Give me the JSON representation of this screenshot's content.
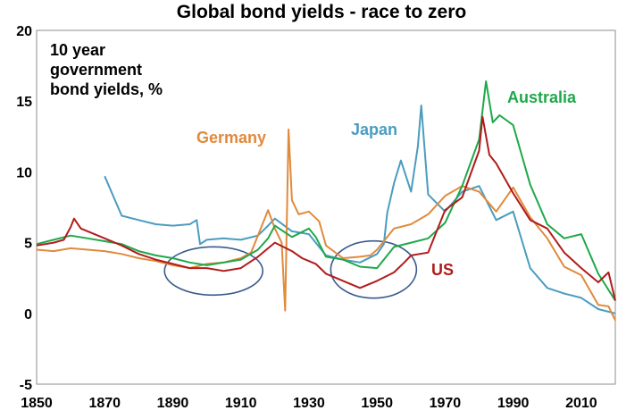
{
  "chart_data": {
    "type": "line",
    "title": "Global bond yields - race to zero",
    "annotation": [
      "10 year",
      "government",
      "bond yields, %"
    ],
    "xlim": [
      1850,
      2020
    ],
    "ylim": [
      -5,
      20
    ],
    "x_ticks": [
      1850,
      1870,
      1890,
      1910,
      1930,
      1950,
      1970,
      1990,
      2010
    ],
    "y_ticks": [
      20,
      15,
      10,
      5,
      0,
      -5
    ],
    "grid": false,
    "colors": {
      "US": "#b01c1c",
      "Germany": "#e08a3c",
      "Japan": "#4a9cc0",
      "Australia": "#1fa84a",
      "ellipse": "#3a5a8c"
    },
    "series": [
      {
        "name": "US",
        "x": [
          1850,
          1855,
          1858,
          1860,
          1861,
          1863,
          1865,
          1870,
          1875,
          1880,
          1885,
          1890,
          1895,
          1900,
          1905,
          1910,
          1915,
          1918,
          1920,
          1925,
          1928,
          1930,
          1932,
          1935,
          1940,
          1945,
          1950,
          1955,
          1958,
          1960,
          1965,
          1970,
          1975,
          1980,
          1981,
          1983,
          1985,
          1990,
          1995,
          2000,
          2005,
          2010,
          2015,
          2018,
          2020
        ],
        "values": [
          4.8,
          5.0,
          5.2,
          6.1,
          6.7,
          6.0,
          5.8,
          5.3,
          4.8,
          4.2,
          3.8,
          3.5,
          3.2,
          3.2,
          3.0,
          3.2,
          4.0,
          4.6,
          5.0,
          4.4,
          3.9,
          3.7,
          3.5,
          2.8,
          2.3,
          1.8,
          2.3,
          2.9,
          3.6,
          4.1,
          4.3,
          7.3,
          8.2,
          11.5,
          13.9,
          11.2,
          10.6,
          8.5,
          6.6,
          6.0,
          4.3,
          3.2,
          2.2,
          2.9,
          0.9
        ]
      },
      {
        "name": "Germany",
        "x": [
          1850,
          1855,
          1860,
          1865,
          1870,
          1875,
          1880,
          1885,
          1890,
          1895,
          1900,
          1905,
          1910,
          1913,
          1915,
          1918,
          1920,
          1922,
          1923,
          1924,
          1925,
          1927,
          1930,
          1933,
          1935,
          1940,
          1945,
          1948,
          1950,
          1955,
          1960,
          1965,
          1970,
          1975,
          1980,
          1985,
          1990,
          1995,
          2000,
          2005,
          2010,
          2015,
          2018,
          2020
        ],
        "values": [
          4.5,
          4.4,
          4.6,
          4.5,
          4.4,
          4.2,
          3.9,
          3.7,
          3.4,
          3.2,
          3.5,
          3.6,
          3.9,
          4.3,
          5.5,
          7.3,
          6.0,
          5.0,
          0.2,
          13.0,
          8.0,
          7.0,
          7.2,
          6.5,
          4.8,
          3.9,
          4.0,
          4.1,
          4.5,
          6.0,
          6.3,
          7.0,
          8.3,
          9.0,
          8.6,
          7.2,
          8.9,
          6.8,
          5.3,
          3.3,
          2.7,
          0.6,
          0.5,
          -0.5
        ]
      },
      {
        "name": "Japan",
        "x": [
          1870,
          1875,
          1880,
          1885,
          1890,
          1895,
          1897,
          1898,
          1900,
          1905,
          1910,
          1915,
          1918,
          1920,
          1925,
          1930,
          1935,
          1940,
          1945,
          1950,
          1952,
          1953,
          1955,
          1957,
          1960,
          1962,
          1963,
          1965,
          1970,
          1975,
          1980,
          1985,
          1990,
          1995,
          2000,
          2005,
          2010,
          2015,
          2020
        ],
        "values": [
          9.7,
          6.9,
          6.6,
          6.3,
          6.2,
          6.3,
          6.6,
          4.9,
          5.2,
          5.3,
          5.2,
          5.5,
          6.2,
          6.7,
          5.8,
          5.6,
          4.1,
          3.8,
          3.6,
          4.2,
          4.9,
          7.1,
          9.2,
          10.8,
          8.6,
          11.8,
          14.7,
          8.4,
          7.2,
          8.6,
          9.0,
          6.6,
          7.2,
          3.2,
          1.8,
          1.4,
          1.1,
          0.3,
          0.0
        ]
      },
      {
        "name": "Australia",
        "x": [
          1850,
          1855,
          1860,
          1865,
          1870,
          1875,
          1880,
          1885,
          1890,
          1895,
          1900,
          1905,
          1910,
          1915,
          1918,
          1920,
          1925,
          1930,
          1932,
          1935,
          1940,
          1945,
          1950,
          1955,
          1960,
          1965,
          1970,
          1975,
          1980,
          1982,
          1984,
          1986,
          1990,
          1995,
          2000,
          2005,
          2010,
          2015,
          2020
        ],
        "values": [
          4.9,
          5.2,
          5.5,
          5.3,
          5.1,
          4.9,
          4.4,
          4.1,
          3.9,
          3.6,
          3.4,
          3.6,
          3.8,
          4.5,
          5.3,
          6.2,
          5.4,
          6.0,
          5.4,
          4.0,
          3.8,
          3.3,
          3.2,
          4.7,
          5.0,
          5.3,
          6.4,
          9.0,
          12.3,
          16.4,
          13.5,
          14.0,
          13.3,
          9.1,
          6.3,
          5.3,
          5.6,
          2.8,
          0.9
        ]
      }
    ],
    "series_labels": {
      "US": "US",
      "Germany": "Germany",
      "Japan": "Japan",
      "Australia": "Australia"
    }
  }
}
